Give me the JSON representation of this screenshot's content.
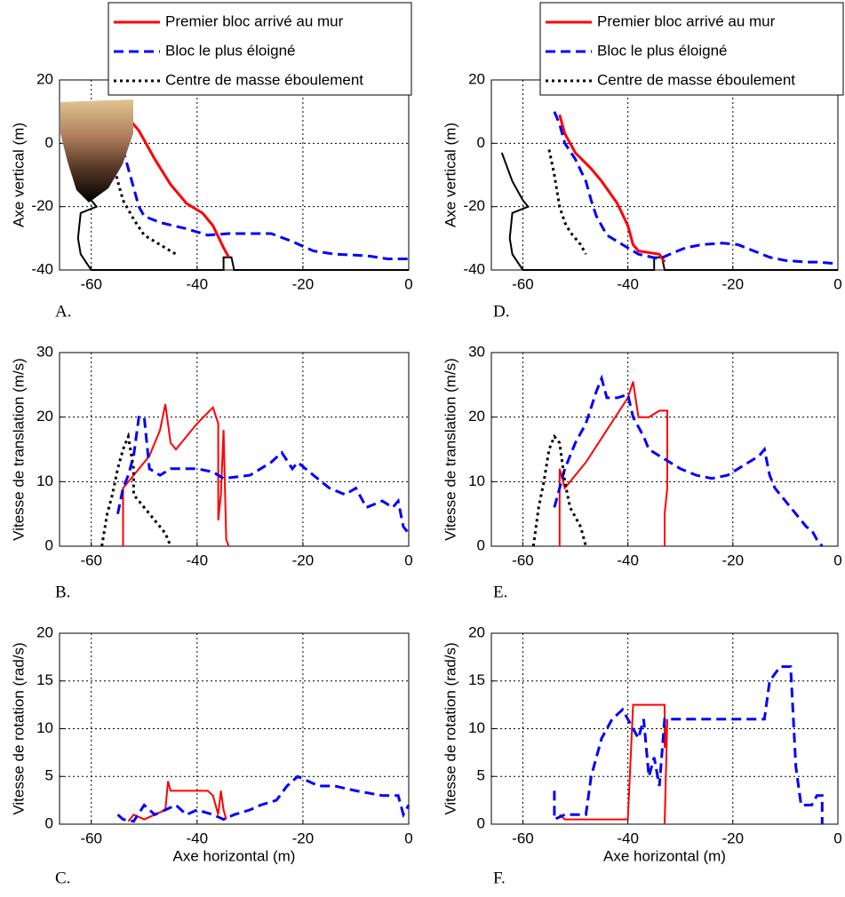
{
  "chart_data": [
    {
      "type": "line",
      "label": "A.",
      "ylabel": "Axe vertical (m)",
      "xlim": [
        -66,
        0
      ],
      "ylim": [
        -40,
        20
      ],
      "xticks": [
        -60,
        -40,
        -20,
        0
      ],
      "yticks": [
        -40,
        -20,
        0,
        20
      ],
      "grid": true,
      "legend": "upper right",
      "series": [
        {
          "color": "#000000",
          "linestyle": "solid",
          "x": [
            -64,
            -62,
            -60,
            -59,
            -62,
            -62.5,
            -62,
            -60,
            -35,
            -35,
            -33.5,
            -33,
            0
          ],
          "values": [
            -3,
            -12,
            -18,
            -20,
            -22,
            -30,
            -35,
            -40,
            -40,
            -36,
            -36,
            -40,
            -40
          ]
        },
        {
          "name": "Premier bloc arrivé au mur",
          "color": "#ff0000",
          "linestyle": "solid",
          "x": [
            -53,
            -51,
            -48,
            -45,
            -42,
            -39,
            -37,
            -35,
            -34
          ],
          "values": [
            8,
            4,
            -5,
            -13,
            -19,
            -22,
            -26,
            -33,
            -36
          ]
        },
        {
          "name": "Bloc le plus éloigné",
          "color": "#0000ff",
          "linestyle": "dashed",
          "x": [
            -55,
            -54,
            -53,
            -52,
            -51,
            -50,
            -47,
            -42,
            -38,
            -34,
            -26,
            -22,
            -18,
            -14,
            -8,
            -4,
            0
          ],
          "values": [
            3,
            -2,
            -8,
            -14,
            -20,
            -23,
            -25,
            -27,
            -29,
            -28.5,
            -28.5,
            -31,
            -34,
            -35,
            -35.5,
            -36.5,
            -36.5
          ]
        },
        {
          "name": "Centre de masse éboulement",
          "color": "#000000",
          "linestyle": "dotted",
          "x": [
            -57,
            -56,
            -55,
            -54,
            -52,
            -50,
            -47,
            -44
          ],
          "values": [
            1,
            -5,
            -12,
            -18,
            -24,
            -29,
            -32,
            -35
          ]
        }
      ]
    },
    {
      "type": "line",
      "label": "B.",
      "ylabel": "Vitesse de translation (m/s)",
      "xlim": [
        -66,
        0
      ],
      "ylim": [
        0,
        30
      ],
      "xticks": [
        -60,
        -40,
        -20,
        0
      ],
      "yticks": [
        0,
        10,
        20,
        30
      ],
      "grid": true,
      "series": [
        {
          "color": "#ff0000",
          "linestyle": "solid",
          "x": [
            -54,
            -54,
            -52,
            -49,
            -47,
            -46,
            -45,
            -44,
            -42,
            -40,
            -37,
            -36,
            -36,
            -35.5,
            -35,
            -34.5,
            -34
          ],
          "values": [
            0,
            9,
            11,
            14,
            18,
            22,
            16,
            15,
            17,
            19,
            21.5,
            19,
            4,
            8,
            18,
            1,
            0
          ]
        },
        {
          "color": "#0000ff",
          "linestyle": "dashed",
          "x": [
            -55,
            -54,
            -53,
            -52,
            -51,
            -50,
            -49,
            -47,
            -45,
            -40,
            -37,
            -35,
            -30,
            -26,
            -24,
            -22,
            -21,
            -18,
            -15,
            -12,
            -10,
            -8,
            -5,
            -3,
            -2,
            -1,
            0
          ],
          "values": [
            5,
            9,
            11,
            14,
            20,
            20,
            12,
            11,
            12,
            12,
            11.5,
            10.5,
            11,
            13,
            14.5,
            12,
            13,
            11,
            9,
            8,
            9,
            6,
            7,
            6,
            7,
            3,
            2
          ]
        },
        {
          "color": "#000000",
          "linestyle": "dotted",
          "x": [
            -58,
            -57,
            -56,
            -55,
            -54,
            -53,
            -52,
            -52,
            -50,
            -48,
            -46,
            -45
          ],
          "values": [
            0,
            5,
            8,
            12,
            15,
            17,
            12,
            8,
            6,
            4,
            2,
            0
          ]
        }
      ]
    },
    {
      "type": "line",
      "label": "C.",
      "ylabel": "Vitesse de rotation (rad/s)",
      "xlabel": "Axe horizontal (m)",
      "xlim": [
        -66,
        0
      ],
      "ylim": [
        0,
        20
      ],
      "xticks": [
        -60,
        -40,
        -20,
        0
      ],
      "yticks": [
        0,
        5,
        10,
        15,
        20
      ],
      "grid": true,
      "series": [
        {
          "color": "#ff0000",
          "linestyle": "solid",
          "x": [
            -53,
            -52,
            -50,
            -48,
            -46,
            -45.5,
            -45,
            -42,
            -38,
            -37,
            -36,
            -35.5,
            -35,
            -34.5
          ],
          "values": [
            0.3,
            1,
            0.5,
            1,
            1.5,
            4.5,
            3.5,
            3.5,
            3.5,
            3,
            1,
            3.5,
            1.5,
            0.5
          ]
        },
        {
          "color": "#0000ff",
          "linestyle": "dashed",
          "x": [
            -55,
            -54,
            -52,
            -50,
            -48,
            -46,
            -44,
            -42,
            -40,
            -37,
            -35,
            -33,
            -30,
            -28,
            -25,
            -23,
            -21,
            -19,
            -17,
            -14,
            -10,
            -5,
            -2,
            -1,
            0
          ],
          "values": [
            1,
            0.5,
            0.3,
            2,
            1,
            1.5,
            2,
            1,
            1.5,
            1,
            0.5,
            1,
            1.5,
            2,
            2.5,
            4,
            5,
            4.5,
            4,
            4,
            3.5,
            3,
            3,
            1,
            2
          ]
        }
      ]
    },
    {
      "type": "line",
      "label": "D.",
      "ylabel": "Axe vertical (m)",
      "xlim": [
        -66,
        0
      ],
      "ylim": [
        -40,
        20
      ],
      "xticks": [
        -60,
        -40,
        -20,
        0
      ],
      "yticks": [
        -40,
        -20,
        0,
        20
      ],
      "grid": true,
      "legend": "upper right",
      "series": [
        {
          "color": "#000000",
          "linestyle": "solid",
          "x": [
            -64,
            -62,
            -60,
            -59,
            -62,
            -62.5,
            -62,
            -60,
            -35,
            -35,
            -33.5,
            -33,
            0
          ],
          "values": [
            -3,
            -12,
            -18,
            -20,
            -22,
            -30,
            -35,
            -40,
            -40,
            -36,
            -36,
            -40,
            -40
          ]
        },
        {
          "name": "Premier bloc arrivé au mur",
          "color": "#ff0000",
          "linestyle": "solid",
          "x": [
            -53,
            -52,
            -50,
            -47,
            -45,
            -42,
            -40,
            -39,
            -38,
            -34,
            -33
          ],
          "values": [
            9,
            3,
            -3,
            -8,
            -12,
            -19,
            -26,
            -32,
            -34,
            -35,
            -37.5
          ]
        },
        {
          "name": "Bloc le plus éloigné",
          "color": "#0000ff",
          "linestyle": "dashed",
          "x": [
            -54,
            -53,
            -52,
            -50,
            -48,
            -47,
            -46,
            -44,
            -41,
            -38,
            -34,
            -32,
            -29,
            -26,
            -22,
            -19,
            -16,
            -13,
            -10,
            -6,
            -4,
            0
          ],
          "values": [
            10,
            6,
            0,
            -5,
            -12,
            -18,
            -23,
            -29,
            -32,
            -35,
            -36.5,
            -35,
            -33,
            -32,
            -31.5,
            -32,
            -34,
            -36,
            -37,
            -37.5,
            -37.5,
            -38
          ]
        },
        {
          "name": "Centre de masse éboulement",
          "color": "#000000",
          "linestyle": "dotted",
          "x": [
            -55,
            -54,
            -53,
            -52,
            -51,
            -49,
            -48
          ],
          "values": [
            -2,
            -10,
            -20,
            -25,
            -28,
            -32,
            -35
          ]
        }
      ]
    },
    {
      "type": "line",
      "label": "E.",
      "ylabel": "Vitesse de translation (m/s)",
      "xlim": [
        -66,
        0
      ],
      "ylim": [
        0,
        30
      ],
      "xticks": [
        -60,
        -40,
        -20,
        0
      ],
      "yticks": [
        0,
        10,
        20,
        30
      ],
      "grid": true,
      "series": [
        {
          "color": "#ff0000",
          "linestyle": "solid",
          "x": [
            -53,
            -53,
            -52,
            -48,
            -44,
            -40,
            -39,
            -38,
            -36,
            -34,
            -32.5,
            -32.5,
            -33,
            -33
          ],
          "values": [
            0,
            12,
            9,
            13,
            18,
            23,
            25.5,
            20,
            20,
            21,
            21,
            9,
            5,
            0
          ]
        },
        {
          "color": "#0000ff",
          "linestyle": "dashed",
          "x": [
            -54,
            -53,
            -52,
            -50,
            -48,
            -46,
            -45,
            -44,
            -42,
            -40,
            -39,
            -37,
            -36,
            -34,
            -32,
            -30,
            -27,
            -24,
            -21,
            -18,
            -15,
            -14,
            -13,
            -12,
            -10,
            -9,
            -7,
            -6,
            -5,
            -4,
            -3
          ],
          "values": [
            6,
            9,
            12,
            16,
            19,
            24,
            26,
            23,
            23,
            23.5,
            20,
            17,
            15,
            14,
            13,
            12,
            11,
            10.5,
            11,
            12.5,
            14,
            15,
            11,
            9,
            7,
            6,
            4,
            3,
            2.5,
            1,
            0
          ]
        },
        {
          "color": "#000000",
          "linestyle": "dotted",
          "x": [
            -58,
            -57,
            -56,
            -55,
            -54,
            -53,
            -52,
            -51,
            -49,
            -48
          ],
          "values": [
            0,
            6,
            10,
            15,
            17,
            16,
            10,
            6,
            3,
            0
          ]
        }
      ]
    },
    {
      "type": "line",
      "label": "F.",
      "ylabel": "Vitesse de rotation (rad/s)",
      "xlabel": "Axe horizontal (m)",
      "xlim": [
        -66,
        0
      ],
      "ylim": [
        0,
        20
      ],
      "xticks": [
        -60,
        -40,
        -20,
        0
      ],
      "yticks": [
        0,
        5,
        10,
        15,
        20
      ],
      "grid": true,
      "series": [
        {
          "color": "#ff0000",
          "linestyle": "solid",
          "x": [
            -53,
            -52,
            -48,
            -44,
            -40,
            -39,
            -35,
            -33,
            -33,
            -32.5,
            -33
          ],
          "values": [
            1,
            0.5,
            0.5,
            0.5,
            0.5,
            12.5,
            12.5,
            12.5,
            8,
            11,
            0
          ]
        },
        {
          "color": "#0000ff",
          "linestyle": "dashed",
          "x": [
            -54,
            -54,
            -52,
            -50,
            -48,
            -47,
            -46,
            -45,
            -43,
            -41,
            -40,
            -38,
            -37,
            -36,
            -35,
            -34,
            -33,
            -30,
            -25,
            -20,
            -15,
            -14,
            -13,
            -11,
            -9,
            -8,
            -7,
            -5,
            -4,
            -3,
            -3
          ],
          "values": [
            3.5,
            0.5,
            1,
            1,
            1,
            5,
            7,
            9,
            11,
            12,
            11,
            9,
            11,
            5,
            7,
            4,
            11,
            11,
            11,
            11,
            11,
            11,
            15,
            16.5,
            16.5,
            6,
            2,
            2,
            3,
            3,
            0
          ]
        }
      ]
    }
  ]
}
